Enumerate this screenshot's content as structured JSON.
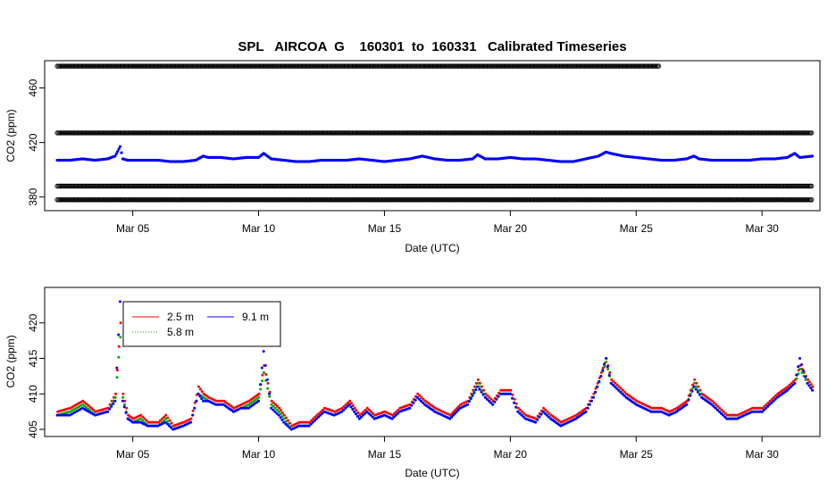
{
  "colors": {
    "s25": "#ff0000",
    "s58": "#00aa00",
    "s91": "#0000ff",
    "calib": "#000000"
  },
  "chart_data": [
    {
      "type": "scatter",
      "title": "SPL   AIRCOA  G    160301  to  160331   Calibrated Timeseries",
      "xlabel": "Date (UTC)",
      "ylabel": "CO2 (ppm)",
      "x_unit": "day of March 2016",
      "xlim": [
        1.5,
        32.3
      ],
      "ylim": [
        370,
        480
      ],
      "x_ticks": [
        5,
        10,
        15,
        20,
        25,
        30
      ],
      "x_tick_labels": [
        "Mar 05",
        "Mar 10",
        "Mar 15",
        "Mar 20",
        "Mar 25",
        "Mar 30"
      ],
      "y_ticks": [
        380,
        420,
        460
      ],
      "y_tick_labels": [
        "380",
        "420",
        "460"
      ],
      "calibration_series": [
        {
          "level": 476,
          "x_range": [
            2.0,
            25.9
          ]
        },
        {
          "level": 427,
          "x_range": [
            2.0,
            32.0
          ]
        },
        {
          "level": 388,
          "x_range": [
            2.0,
            32.0
          ]
        },
        {
          "level": 378,
          "x_range": [
            2.0,
            32.0
          ]
        }
      ],
      "sample_series": [
        {
          "name": "9.1 m",
          "x": [
            2,
            2.5,
            3,
            3.5,
            4,
            4.3,
            4.5,
            4.6,
            4.8,
            5,
            5.5,
            6,
            6.5,
            7,
            7.5,
            7.8,
            8,
            8.5,
            9,
            9.5,
            10,
            10.2,
            10.5,
            11,
            11.5,
            12,
            12.5,
            13,
            13.5,
            14,
            14.5,
            15,
            15.5,
            16,
            16.5,
            17,
            17.5,
            18,
            18.5,
            18.7,
            19,
            19.5,
            20,
            20.5,
            21,
            21.5,
            22,
            22.5,
            23,
            23.5,
            23.8,
            24,
            24.5,
            25,
            25.5,
            26,
            26.5,
            27,
            27.3,
            27.5,
            28,
            28.5,
            29,
            29.5,
            30,
            30.5,
            31,
            31.3,
            31.5,
            32
          ],
          "y": [
            407,
            407,
            408,
            407,
            408,
            410,
            417,
            408,
            407,
            407,
            407,
            407,
            406,
            406,
            407,
            410,
            409,
            409,
            408,
            409,
            409,
            412,
            408,
            407,
            406,
            406,
            407,
            407,
            407,
            408,
            407,
            406,
            407,
            408,
            410,
            408,
            407,
            407,
            408,
            411,
            408,
            408,
            409,
            408,
            408,
            407,
            406,
            406,
            408,
            410,
            413,
            412,
            410,
            409,
            408,
            407,
            407,
            408,
            410,
            408,
            407,
            407,
            407,
            407,
            408,
            408,
            409,
            412,
            409,
            410
          ]
        }
      ]
    },
    {
      "type": "line",
      "title": "",
      "xlabel": "Date (UTC)",
      "ylabel": "CO2 (ppm)",
      "x_unit": "day of March 2016",
      "xlim": [
        1.5,
        32.3
      ],
      "ylim": [
        404,
        425
      ],
      "x_ticks": [
        5,
        10,
        15,
        20,
        25,
        30
      ],
      "x_tick_labels": [
        "Mar 05",
        "Mar 10",
        "Mar 15",
        "Mar 20",
        "Mar 25",
        "Mar 30"
      ],
      "y_ticks": [
        405,
        410,
        415,
        420
      ],
      "y_tick_labels": [
        "405",
        "410",
        "415",
        "420"
      ],
      "legend_position": "top-left",
      "x": [
        2,
        2.5,
        3,
        3.5,
        4,
        4.3,
        4.5,
        4.6,
        4.8,
        5,
        5.3,
        5.6,
        6,
        6.3,
        6.6,
        7,
        7.3,
        7.6,
        7.8,
        8,
        8.3,
        8.6,
        9,
        9.3,
        9.6,
        10,
        10.2,
        10.5,
        10.8,
        11,
        11.3,
        11.6,
        12,
        12.3,
        12.6,
        13,
        13.3,
        13.6,
        14,
        14.3,
        14.6,
        15,
        15.3,
        15.6,
        16,
        16.3,
        16.6,
        17,
        17.3,
        17.6,
        18,
        18.3,
        18.7,
        19,
        19.3,
        19.6,
        20,
        20.3,
        20.6,
        21,
        21.3,
        21.6,
        22,
        22.3,
        22.6,
        23,
        23.3,
        23.6,
        23.8,
        24,
        24.3,
        24.6,
        25,
        25.3,
        25.6,
        26,
        26.3,
        26.6,
        27,
        27.3,
        27.6,
        28,
        28.3,
        28.6,
        29,
        29.3,
        29.6,
        30,
        30.3,
        30.6,
        31,
        31.3,
        31.5,
        31.8,
        32
      ],
      "series": [
        {
          "name": "2.5 m",
          "y": [
            407.5,
            408,
            409,
            407.5,
            408,
            410,
            420,
            410,
            407,
            406.5,
            407,
            406,
            406,
            407,
            405.5,
            406,
            406.5,
            411,
            410,
            409.5,
            409,
            409,
            408,
            408.5,
            409,
            410,
            414,
            409,
            408,
            407,
            405.5,
            406,
            406,
            407,
            408,
            407.5,
            408,
            409,
            407,
            408,
            407,
            407.5,
            407,
            408,
            408.5,
            410,
            409,
            408,
            407.5,
            407,
            408.5,
            409,
            412,
            410,
            409,
            410.5,
            410.5,
            408,
            407,
            406.5,
            408,
            407,
            406,
            406.5,
            407,
            408,
            410,
            413,
            415,
            412,
            411,
            410,
            409,
            408.5,
            408,
            408,
            407.5,
            408,
            409,
            412,
            410,
            409,
            408,
            407,
            407,
            407.5,
            408,
            408,
            409,
            410,
            411,
            412,
            414,
            412,
            411
          ]
        },
        {
          "name": "5.8 m",
          "y": [
            407,
            407.5,
            408.5,
            407,
            407.5,
            409.5,
            418,
            409.5,
            406.5,
            406,
            406.5,
            405.5,
            405.5,
            406.5,
            405,
            405.5,
            406,
            410,
            409.5,
            409,
            408.5,
            408.5,
            407.5,
            408,
            408.5,
            409.5,
            413,
            408.5,
            407.5,
            406.5,
            405,
            405.5,
            405.5,
            406.5,
            407.5,
            407,
            407.5,
            408.5,
            406.5,
            407.5,
            406.5,
            407,
            406.5,
            407.5,
            408,
            409.5,
            408.5,
            407.5,
            407,
            406.5,
            408,
            408.5,
            411.5,
            409.5,
            408.5,
            410,
            410,
            407.5,
            406.5,
            406,
            407.5,
            406.5,
            405.5,
            406,
            406.5,
            407.5,
            409.5,
            412.5,
            414.5,
            411.5,
            410.5,
            409.5,
            408.5,
            408,
            407.5,
            407.5,
            407,
            407.5,
            408.5,
            411.5,
            409.5,
            408.5,
            407.5,
            406.5,
            406.5,
            407,
            407.5,
            407.5,
            408.5,
            409.5,
            410.5,
            411.5,
            413.5,
            411.5,
            410.5
          ]
        },
        {
          "name": "9.1 m",
          "y": [
            407,
            407,
            408,
            407,
            407.5,
            409,
            423,
            409,
            406.5,
            406,
            406,
            405.5,
            405.5,
            406,
            405,
            405.5,
            406,
            410,
            409,
            409,
            408.5,
            408.5,
            407.5,
            408,
            408,
            409,
            416,
            408,
            407,
            406,
            405,
            405.5,
            405.5,
            406.5,
            407.5,
            407,
            407.5,
            408.5,
            406.5,
            407.5,
            406.5,
            407,
            406.5,
            407.5,
            408,
            409.5,
            408.5,
            407.5,
            407,
            406.5,
            408,
            408.5,
            411,
            409.5,
            408.5,
            410,
            410,
            407.5,
            406.5,
            406,
            407.5,
            406.5,
            405.5,
            406,
            406.5,
            407.5,
            409.5,
            412.5,
            415,
            411.5,
            410.5,
            409.5,
            408.5,
            408,
            407.5,
            407.5,
            407,
            407.5,
            408.5,
            411,
            409.5,
            408.5,
            407.5,
            406.5,
            406.5,
            407,
            407.5,
            407.5,
            408.5,
            409.5,
            410.5,
            411.5,
            415,
            411.5,
            410.5
          ]
        }
      ]
    }
  ]
}
